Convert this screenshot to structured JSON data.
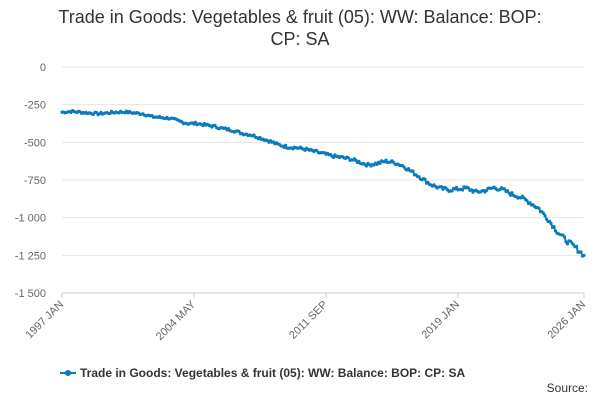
{
  "title_lines": [
    "Trade in Goods: Vegetables & fruit (05): WW: Balance: BOP:",
    "CP: SA"
  ],
  "source_label": "Source:",
  "chart_data": {
    "type": "line",
    "title": "Trade in Goods: Vegetables & fruit (05): WW: Balance: BOP: CP: SA",
    "xlabel": "",
    "ylabel": "",
    "x_tick_labels": [
      "1997 JAN",
      "2004 MAY",
      "2011 SEP",
      "2019 JAN",
      "2026 JAN"
    ],
    "x_range": [
      "1997-01",
      "2026-01"
    ],
    "y_ticks": [
      0,
      -250,
      -500,
      -750,
      -1000,
      -1250,
      -1500
    ],
    "y_tick_labels": [
      "0",
      "-250",
      "-500",
      "-750",
      "-1 000",
      "-1 250",
      "-1 500"
    ],
    "ylim": [
      -1500,
      0
    ],
    "grid": "horizontal",
    "legend_position": "bottom",
    "series": [
      {
        "name": "Trade in Goods: Vegetables & fruit (05): WW: Balance: BOP: CP: SA",
        "color": "#0a7bbd",
        "marker": "circle",
        "x": [
          "1997-01",
          "1997-07",
          "1998-01",
          "1998-07",
          "1999-01",
          "1999-07",
          "2000-01",
          "2000-07",
          "2001-01",
          "2001-07",
          "2002-01",
          "2002-07",
          "2003-01",
          "2003-07",
          "2004-01",
          "2004-07",
          "2005-01",
          "2005-07",
          "2006-01",
          "2006-07",
          "2007-01",
          "2007-07",
          "2008-01",
          "2008-07",
          "2009-01",
          "2009-07",
          "2010-01",
          "2010-07",
          "2011-01",
          "2011-07",
          "2012-01",
          "2012-07",
          "2013-01",
          "2013-07",
          "2014-01",
          "2014-07",
          "2015-01",
          "2015-07",
          "2016-01",
          "2016-07",
          "2017-01",
          "2017-07",
          "2018-01",
          "2018-07",
          "2019-01",
          "2019-07",
          "2020-01",
          "2020-07",
          "2021-01",
          "2021-07",
          "2022-01",
          "2022-07",
          "2023-01",
          "2023-07",
          "2024-01",
          "2024-07",
          "2025-01",
          "2025-07",
          "2026-01"
        ],
        "values": [
          -300,
          -295,
          -300,
          -305,
          -310,
          -305,
          -300,
          -298,
          -305,
          -310,
          -330,
          -335,
          -340,
          -360,
          -375,
          -375,
          -385,
          -395,
          -410,
          -420,
          -440,
          -450,
          -470,
          -490,
          -515,
          -530,
          -535,
          -545,
          -560,
          -575,
          -590,
          -600,
          -610,
          -630,
          -650,
          -640,
          -625,
          -635,
          -660,
          -700,
          -740,
          -780,
          -805,
          -815,
          -810,
          -805,
          -830,
          -820,
          -800,
          -815,
          -845,
          -865,
          -900,
          -940,
          -1010,
          -1090,
          -1150,
          -1195,
          -1250
        ]
      }
    ]
  }
}
